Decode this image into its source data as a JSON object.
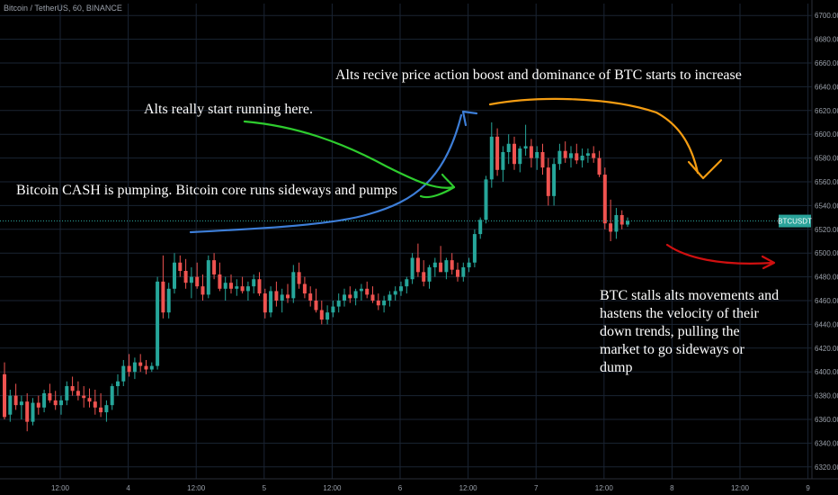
{
  "header": {
    "symbol_line": "Bitcoin / TetherUS, 60, BINANCE"
  },
  "price_tag": {
    "label": "BTCUSDT",
    "value": 6527
  },
  "colors": {
    "up": "#26a69a",
    "down": "#ef5350",
    "grid": "#1a2433",
    "axis_text": "#9aa0aa",
    "blue": "#3d7ed8",
    "green": "#2ecc2e",
    "orange": "#f39c12",
    "red": "#d01010",
    "tag_bg": "#2aa39a"
  },
  "chart_data": {
    "type": "candlestick",
    "ylim": [
      6310,
      6710
    ],
    "y_ticks": [
      6320,
      6340,
      6360,
      6380,
      6400,
      6420,
      6440,
      6460,
      6480,
      6500,
      6520,
      6540,
      6560,
      6580,
      6600,
      6620,
      6640,
      6660,
      6680,
      6700
    ],
    "x_ticks": [
      "12:00",
      "4",
      "12:00",
      "5",
      "12:00",
      "6",
      "12:00",
      "7",
      "12:00",
      "8",
      "12:00",
      "9"
    ],
    "candles": [
      [
        6398,
        6408,
        6360,
        6362
      ],
      [
        6364,
        6385,
        6358,
        6380
      ],
      [
        6380,
        6390,
        6368,
        6372
      ],
      [
        6372,
        6380,
        6360,
        6375
      ],
      [
        6375,
        6382,
        6350,
        6358
      ],
      [
        6358,
        6378,
        6355,
        6374
      ],
      [
        6374,
        6380,
        6364,
        6370
      ],
      [
        6370,
        6385,
        6366,
        6382
      ],
      [
        6382,
        6390,
        6374,
        6376
      ],
      [
        6376,
        6384,
        6368,
        6372
      ],
      [
        6372,
        6380,
        6364,
        6376
      ],
      [
        6376,
        6392,
        6372,
        6388
      ],
      [
        6388,
        6396,
        6380,
        6384
      ],
      [
        6384,
        6392,
        6376,
        6380
      ],
      [
        6380,
        6388,
        6370,
        6378
      ],
      [
        6378,
        6386,
        6370,
        6375
      ],
      [
        6375,
        6385,
        6364,
        6370
      ],
      [
        6370,
        6382,
        6362,
        6366
      ],
      [
        6366,
        6376,
        6358,
        6372
      ],
      [
        6372,
        6390,
        6368,
        6388
      ],
      [
        6388,
        6398,
        6380,
        6392
      ],
      [
        6392,
        6410,
        6388,
        6405
      ],
      [
        6405,
        6415,
        6396,
        6400
      ],
      [
        6400,
        6412,
        6394,
        6408
      ],
      [
        6408,
        6415,
        6400,
        6405
      ],
      [
        6405,
        6410,
        6398,
        6402
      ],
      [
        6402,
        6408,
        6400,
        6405
      ],
      [
        6405,
        6480,
        6402,
        6476
      ],
      [
        6476,
        6498,
        6445,
        6450
      ],
      [
        6450,
        6475,
        6445,
        6470
      ],
      [
        6470,
        6500,
        6466,
        6492
      ],
      [
        6492,
        6498,
        6480,
        6485
      ],
      [
        6485,
        6495,
        6470,
        6475
      ],
      [
        6475,
        6488,
        6462,
        6480
      ],
      [
        6480,
        6492,
        6470,
        6472
      ],
      [
        6472,
        6482,
        6460,
        6465
      ],
      [
        6465,
        6498,
        6462,
        6494
      ],
      [
        6494,
        6500,
        6478,
        6482
      ],
      [
        6482,
        6492,
        6468,
        6470
      ],
      [
        6470,
        6480,
        6460,
        6475
      ],
      [
        6475,
        6482,
        6466,
        6470
      ],
      [
        6470,
        6478,
        6464,
        6472
      ],
      [
        6472,
        6480,
        6466,
        6468
      ],
      [
        6468,
        6476,
        6460,
        6472
      ],
      [
        6472,
        6482,
        6466,
        6478
      ],
      [
        6478,
        6484,
        6464,
        6466
      ],
      [
        6466,
        6470,
        6445,
        6450
      ],
      [
        6450,
        6472,
        6446,
        6468
      ],
      [
        6468,
        6476,
        6455,
        6460
      ],
      [
        6460,
        6470,
        6450,
        6465
      ],
      [
        6465,
        6474,
        6458,
        6462
      ],
      [
        6462,
        6490,
        6458,
        6484
      ],
      [
        6484,
        6492,
        6470,
        6474
      ],
      [
        6474,
        6480,
        6462,
        6466
      ],
      [
        6466,
        6472,
        6455,
        6460
      ],
      [
        6460,
        6470,
        6450,
        6452
      ],
      [
        6452,
        6460,
        6440,
        6444
      ],
      [
        6444,
        6456,
        6440,
        6450
      ],
      [
        6450,
        6460,
        6446,
        6455
      ],
      [
        6455,
        6466,
        6450,
        6460
      ],
      [
        6460,
        6470,
        6455,
        6465
      ],
      [
        6465,
        6472,
        6458,
        6462
      ],
      [
        6462,
        6470,
        6456,
        6468
      ],
      [
        6468,
        6474,
        6460,
        6470
      ],
      [
        6470,
        6476,
        6462,
        6465
      ],
      [
        6465,
        6472,
        6458,
        6460
      ],
      [
        6460,
        6466,
        6452,
        6456
      ],
      [
        6456,
        6464,
        6450,
        6460
      ],
      [
        6460,
        6468,
        6455,
        6465
      ],
      [
        6465,
        6472,
        6460,
        6468
      ],
      [
        6468,
        6476,
        6464,
        6472
      ],
      [
        6472,
        6480,
        6466,
        6478
      ],
      [
        6478,
        6500,
        6474,
        6496
      ],
      [
        6496,
        6508,
        6480,
        6484
      ],
      [
        6484,
        6494,
        6472,
        6476
      ],
      [
        6476,
        6490,
        6470,
        6488
      ],
      [
        6488,
        6496,
        6480,
        6492
      ],
      [
        6492,
        6506,
        6486,
        6484
      ],
      [
        6484,
        6496,
        6478,
        6494
      ],
      [
        6494,
        6500,
        6482,
        6486
      ],
      [
        6486,
        6492,
        6476,
        6480
      ],
      [
        6480,
        6492,
        6476,
        6488
      ],
      [
        6488,
        6496,
        6484,
        6492
      ],
      [
        6492,
        6520,
        6488,
        6516
      ],
      [
        6516,
        6530,
        6512,
        6528
      ],
      [
        6528,
        6565,
        6525,
        6562
      ],
      [
        6562,
        6610,
        6555,
        6598
      ],
      [
        6598,
        6605,
        6565,
        6570
      ],
      [
        6570,
        6590,
        6560,
        6585
      ],
      [
        6585,
        6600,
        6575,
        6592
      ],
      [
        6592,
        6598,
        6570,
        6575
      ],
      [
        6575,
        6590,
        6568,
        6588
      ],
      [
        6588,
        6608,
        6582,
        6590
      ],
      [
        6590,
        6596,
        6572,
        6580
      ],
      [
        6580,
        6590,
        6570,
        6585
      ],
      [
        6585,
        6592,
        6566,
        6572
      ],
      [
        6572,
        6580,
        6540,
        6548
      ],
      [
        6548,
        6580,
        6540,
        6575
      ],
      [
        6575,
        6592,
        6570,
        6586
      ],
      [
        6586,
        6594,
        6576,
        6580
      ],
      [
        6580,
        6590,
        6572,
        6584
      ],
      [
        6584,
        6592,
        6575,
        6578
      ],
      [
        6578,
        6588,
        6572,
        6582
      ],
      [
        6582,
        6588,
        6576,
        6584
      ],
      [
        6584,
        6590,
        6576,
        6580
      ],
      [
        6580,
        6586,
        6564,
        6566
      ],
      [
        6566,
        6572,
        6520,
        6525
      ],
      [
        6525,
        6545,
        6510,
        6518
      ],
      [
        6518,
        6538,
        6512,
        6532
      ],
      [
        6532,
        6536,
        6520,
        6524
      ],
      [
        6524,
        6530,
        6522,
        6527
      ]
    ]
  },
  "annotations": {
    "alts_boost": "Alts recive price action boost and dominance of BTC starts to increase",
    "alts_running": "Alts really start running here.",
    "bitcoin_cash": "Bitcoin CASH is pumping. Bitcoin core runs sideways and pumps",
    "btc_stalls": [
      "BTC stalls alts movements and",
      "hastens the velocity of their",
      "down trends, pulling the",
      "market to go sideways or",
      "dump"
    ]
  }
}
